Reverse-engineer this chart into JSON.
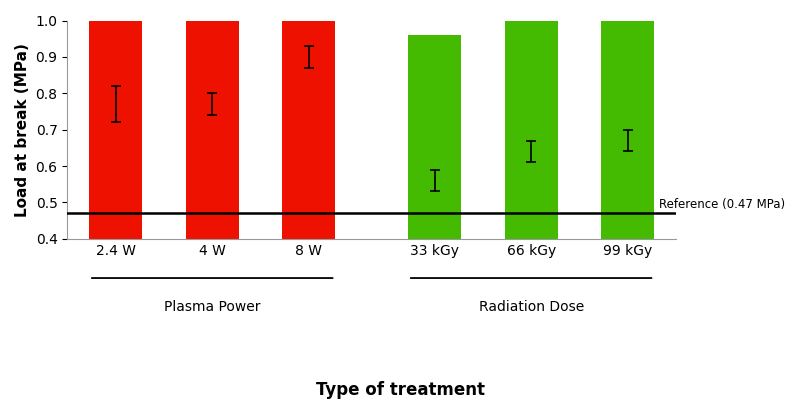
{
  "categories": [
    "2.4 W",
    "4 W",
    "8 W",
    "33 kGy",
    "66 kGy",
    "99 kGy"
  ],
  "values": [
    0.77,
    0.77,
    0.9,
    0.56,
    0.64,
    0.67
  ],
  "errors": [
    0.05,
    0.03,
    0.03,
    0.03,
    0.03,
    0.03
  ],
  "bar_colors": [
    "#EE1100",
    "#EE1100",
    "#EE1100",
    "#44BB00",
    "#44BB00",
    "#44BB00"
  ],
  "reference_value": 0.47,
  "reference_label": "Reference (0.47 MPa)",
  "ylabel": "Load at break (MPa)",
  "xlabel": "Type of treatment",
  "ylim": [
    0.4,
    1.0
  ],
  "yticks": [
    0.4,
    0.5,
    0.6,
    0.7,
    0.8,
    0.9,
    1.0
  ],
  "group_labels": [
    "Plasma Power",
    "Radiation Dose"
  ],
  "bar_width": 0.55,
  "figsize": [
    8.0,
    4.03
  ],
  "dpi": 100,
  "background_color": "#ffffff",
  "axis_label_fontsize": 11,
  "tick_fontsize": 10,
  "group_label_fontsize": 10
}
